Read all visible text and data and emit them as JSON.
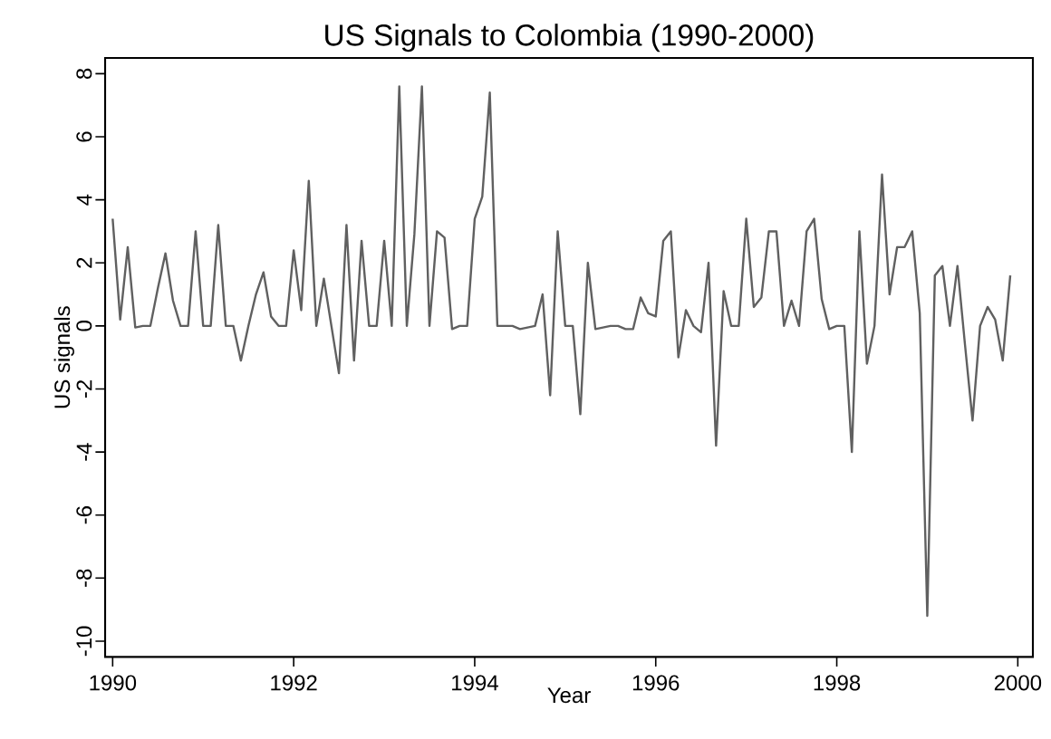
{
  "chart_data": {
    "type": "line",
    "title": "US Signals to Colombia (1990-2000)",
    "xlabel": "Year",
    "ylabel": "US signals",
    "x": [
      "1990-01",
      "1990-02",
      "1990-03",
      "1990-04",
      "1990-05",
      "1990-06",
      "1990-07",
      "1990-08",
      "1990-09",
      "1990-10",
      "1990-11",
      "1990-12",
      "1991-01",
      "1991-02",
      "1991-03",
      "1991-04",
      "1991-05",
      "1991-06",
      "1991-07",
      "1991-08",
      "1991-09",
      "1991-10",
      "1991-11",
      "1991-12",
      "1992-01",
      "1992-02",
      "1992-03",
      "1992-04",
      "1992-05",
      "1992-06",
      "1992-07",
      "1992-08",
      "1992-09",
      "1992-10",
      "1992-11",
      "1992-12",
      "1993-01",
      "1993-02",
      "1993-03",
      "1993-04",
      "1993-05",
      "1993-06",
      "1993-07",
      "1993-08",
      "1993-09",
      "1993-10",
      "1993-11",
      "1993-12",
      "1994-01",
      "1994-02",
      "1994-03",
      "1994-04",
      "1994-05",
      "1994-06",
      "1994-07",
      "1994-08",
      "1994-09",
      "1994-10",
      "1994-11",
      "1994-12",
      "1995-01",
      "1995-02",
      "1995-03",
      "1995-04",
      "1995-05",
      "1995-06",
      "1995-07",
      "1995-08",
      "1995-09",
      "1995-10",
      "1995-11",
      "1995-12",
      "1996-01",
      "1996-02",
      "1996-03",
      "1996-04",
      "1996-05",
      "1996-06",
      "1996-07",
      "1996-08",
      "1996-09",
      "1996-10",
      "1996-11",
      "1996-12",
      "1997-01",
      "1997-02",
      "1997-03",
      "1997-04",
      "1997-05",
      "1997-06",
      "1997-07",
      "1997-08",
      "1997-09",
      "1997-10",
      "1997-11",
      "1997-12",
      "1998-01",
      "1998-02",
      "1998-03",
      "1998-04",
      "1998-05",
      "1998-06",
      "1998-07",
      "1998-08",
      "1998-09",
      "1998-10",
      "1998-11",
      "1998-12",
      "1999-01",
      "1999-02",
      "1999-03",
      "1999-04",
      "1999-05",
      "1999-06",
      "1999-07",
      "1999-08",
      "1999-09",
      "1999-10",
      "1999-11",
      "1999-12"
    ],
    "series": [
      {
        "color": "#606060",
        "values": [
          3.4,
          0.2,
          2.5,
          -0.05,
          0,
          0,
          1.2,
          2.3,
          0.8,
          0,
          0,
          3.0,
          0,
          0,
          3.2,
          0,
          0,
          -1.1,
          0,
          1.0,
          1.7,
          0.3,
          0,
          0,
          2.4,
          0.5,
          4.6,
          0,
          1.5,
          0,
          -1.5,
          3.2,
          -1.1,
          2.7,
          0,
          0,
          2.7,
          0,
          7.6,
          0,
          2.9,
          7.6,
          0,
          3.0,
          2.8,
          -0.1,
          0,
          0,
          3.4,
          4.1,
          7.4,
          0,
          0,
          0,
          -0.1,
          -0.05,
          0,
          1.0,
          -2.2,
          3.0,
          0,
          0,
          -2.8,
          2.0,
          -0.1,
          -0.05,
          0,
          0,
          -0.1,
          -0.1,
          0.9,
          0.4,
          0.3,
          2.7,
          3.0,
          -1.0,
          0.5,
          0,
          -0.2,
          2.0,
          -3.8,
          1.1,
          0,
          0,
          3.4,
          0.6,
          0.9,
          3.0,
          3.0,
          0,
          0.8,
          0,
          3.0,
          3.4,
          0.85,
          -0.1,
          0,
          0,
          -4.0,
          3.0,
          -1.2,
          0,
          4.8,
          1.0,
          2.5,
          2.5,
          3.0,
          0.4,
          -9.2,
          1.6,
          1.9,
          0,
          1.9,
          -0.6,
          -3.0,
          0,
          0.6,
          0.2,
          -1.1,
          1.6
        ]
      }
    ],
    "xlim": [
      "1989-12",
      "2000-03"
    ],
    "xticks": [
      "1990",
      "1992",
      "1994",
      "1996",
      "1998",
      "2000"
    ],
    "ylim": [
      -10.5,
      8.5
    ],
    "yticks": [
      -10,
      -8,
      -6,
      -4,
      -2,
      0,
      2,
      4,
      6,
      8
    ],
    "grid": false,
    "marker": "none",
    "line_style": "solid"
  }
}
